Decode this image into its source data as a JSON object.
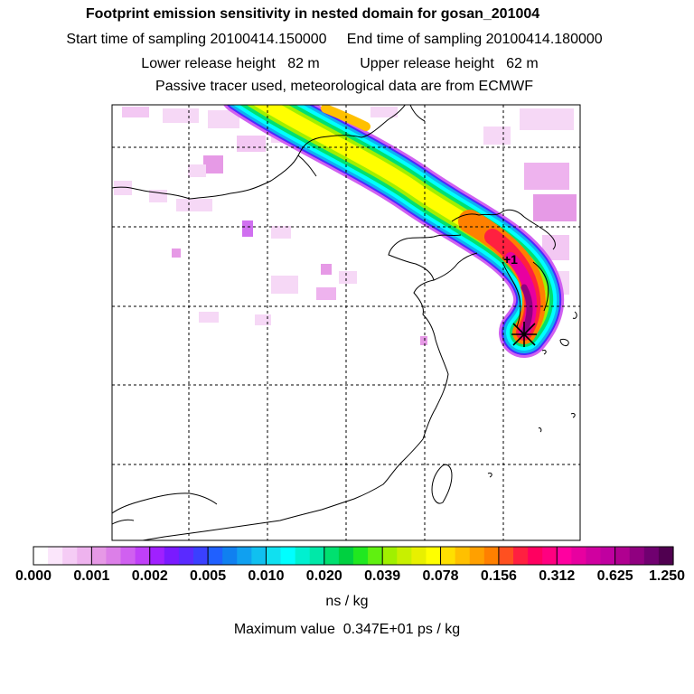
{
  "header": {
    "title": "Footprint emission sensitivity in nested domain for gosan_201004",
    "sampling_start_label": "Start time of sampling",
    "sampling_start_value": "20100414.150000",
    "sampling_end_label": "End time of sampling",
    "sampling_end_value": "20100414.180000",
    "lower_release_label": "Lower release height",
    "lower_release_value": "82 m",
    "upper_release_label": "Upper release height",
    "upper_release_value": "62 m",
    "tracer_note": "Passive tracer used, meteorological data are from ECMWF"
  },
  "map": {
    "release_marker": "star-marker",
    "station_label": "+1"
  },
  "colorbar": {
    "tick_labels": [
      "0.000",
      "0.001",
      "0.002",
      "0.005",
      "0.010",
      "0.020",
      "0.039",
      "0.078",
      "0.156",
      "0.312",
      "0.625",
      "1.250"
    ],
    "colors": [
      "#ffffff",
      "#fbe6fb",
      "#f5ccf5",
      "#eeb3ee",
      "#e699e6",
      "#dc7fe8",
      "#d060f0",
      "#c040f8",
      "#a020ff",
      "#7a1aff",
      "#5a2aff",
      "#3a40ff",
      "#2060ff",
      "#1080f0",
      "#10a0f0",
      "#10c0f0",
      "#10e0f0",
      "#00ffff",
      "#00f0d0",
      "#00e8a8",
      "#00e070",
      "#00d040",
      "#20e820",
      "#60f010",
      "#a0f000",
      "#c8f000",
      "#e8f000",
      "#ffff00",
      "#ffe000",
      "#ffc000",
      "#ffa000",
      "#ff8000",
      "#ff5020",
      "#ff2040",
      "#ff0060",
      "#ff0080",
      "#ff00a0",
      "#e800a0",
      "#d000a0",
      "#c000a0",
      "#b00090",
      "#900080",
      "#700070",
      "#500050"
    ],
    "unit": "ns / kg"
  },
  "footer": {
    "max_label": "Maximum value",
    "max_value": "0.347E+01 ps / kg"
  }
}
